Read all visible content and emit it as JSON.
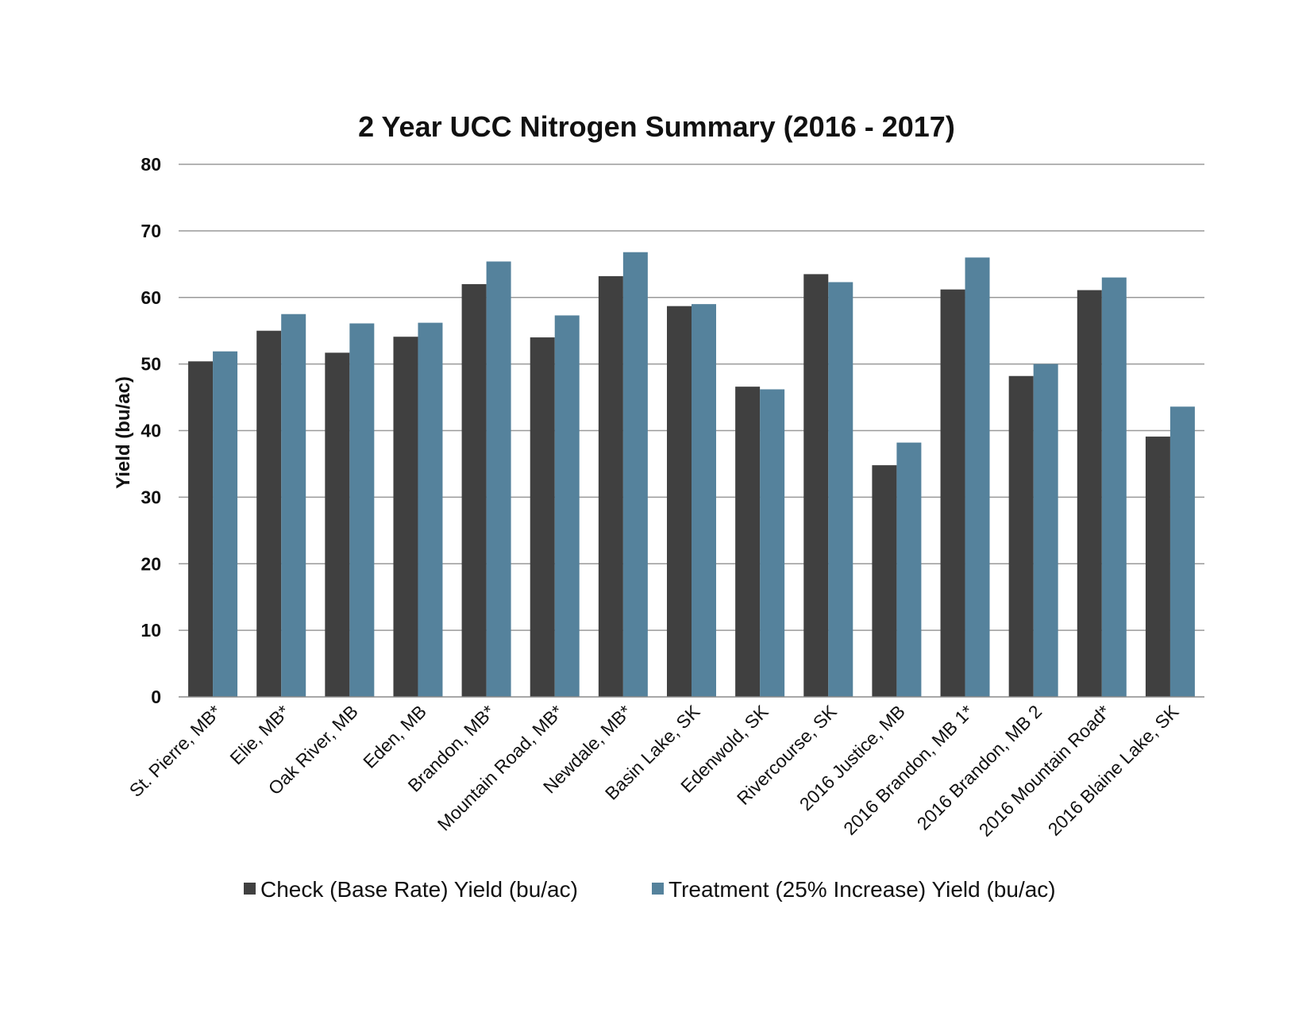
{
  "chart_data": {
    "type": "bar",
    "title": "2 Year UCC Nitrogen Summary (2016 - 2017)",
    "xlabel": "",
    "ylabel": "Yield (bu/ac)",
    "ylim": [
      0,
      80
    ],
    "yticks": [
      0,
      10,
      20,
      30,
      40,
      50,
      60,
      70,
      80
    ],
    "grid": true,
    "legend_position": "bottom",
    "categories": [
      "St. Pierre, MB*",
      "Elie, MB*",
      "Oak River, MB",
      "Eden, MB",
      "Brandon, MB*",
      "Mountain Road, MB*",
      "Newdale, MB*",
      "Basin Lake, SK",
      "Edenwold, SK",
      "Rivercourse, SK",
      "2016 Justice, MB",
      "2016 Brandon, MB 1*",
      "2016 Brandon, MB 2",
      "2016 Mountain Road*",
      "2016 Blaine Lake, SK"
    ],
    "series": [
      {
        "name": "Check (Base Rate) Yield (bu/ac)",
        "color": "#404040",
        "values": [
          50.4,
          55.0,
          51.7,
          54.1,
          62.0,
          54.0,
          63.2,
          58.7,
          46.6,
          63.5,
          34.8,
          61.2,
          48.2,
          61.1,
          39.1
        ]
      },
      {
        "name": "Treatment (25% Increase) Yield (bu/ac)",
        "color": "#55829c",
        "values": [
          51.9,
          57.5,
          56.1,
          56.2,
          65.4,
          57.3,
          66.8,
          59.0,
          46.2,
          62.3,
          38.2,
          66.0,
          50.0,
          63.0,
          43.6
        ]
      }
    ]
  }
}
